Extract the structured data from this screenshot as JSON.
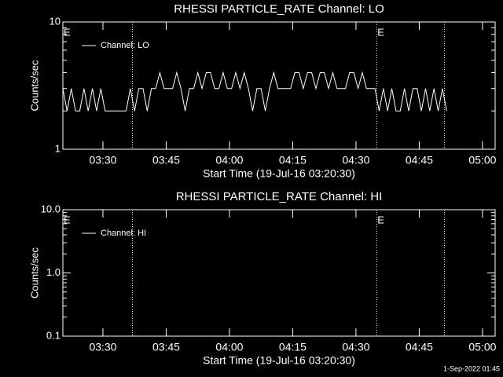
{
  "chart_data": [
    {
      "type": "line",
      "title": "RHESSI PARTICLE_RATE Channel: LO",
      "x_label": "Start Time (19-Jul-16 03:20:30)",
      "y_label": "Counts/sec",
      "log_y": true,
      "ylim": [
        1,
        10
      ],
      "yticks": [
        1,
        10
      ],
      "xlim": [
        200.5,
        303
      ],
      "xticks": [
        {
          "value": 210,
          "label": "03:30"
        },
        {
          "value": 225,
          "label": "03:45"
        },
        {
          "value": 240,
          "label": "04:00"
        },
        {
          "value": 255,
          "label": "04:15"
        },
        {
          "value": 270,
          "label": "04:30"
        },
        {
          "value": 285,
          "label": "04:45"
        },
        {
          "value": 300,
          "label": "05:00"
        }
      ],
      "x": [
        200.5,
        201.5,
        202.5,
        203.5,
        204.5,
        205.5,
        206.5,
        207.5,
        208.5,
        209.5,
        210.5,
        211.5,
        212.5,
        213.5,
        214.5,
        215.5,
        216.5,
        217.5,
        218.5,
        219.5,
        220.5,
        221.5,
        222.5,
        223.5,
        224.5,
        225.5,
        226.5,
        227.5,
        228.5,
        229.5,
        230.5,
        231.5,
        232.5,
        233.5,
        234.5,
        235.5,
        236.5,
        237.5,
        238.5,
        239.5,
        240.5,
        241.5,
        242.5,
        243.5,
        244.5,
        245.5,
        246.5,
        247.5,
        248.5,
        249.5,
        250.5,
        251.5,
        252.5,
        253.5,
        254.5,
        255.5,
        256.5,
        257.5,
        258.5,
        259.5,
        260.5,
        261.5,
        262.5,
        263.5,
        264.5,
        265.5,
        266.5,
        267.5,
        268.5,
        269.5,
        270.5,
        271.5,
        272.5,
        273.5,
        274.5,
        275.5,
        276.5,
        277.5,
        278.5,
        279.5,
        280.5,
        281.5,
        282.5,
        283.5,
        284.5,
        285.5,
        286.5,
        287.5,
        288.5,
        289.5,
        290.5,
        291.5
      ],
      "series": [
        {
          "name": "Channel: LO",
          "color": "#ffffff",
          "values": [
            3,
            2,
            3,
            2,
            2,
            3,
            2,
            3,
            2,
            3,
            2,
            2,
            2,
            2,
            2,
            2,
            3,
            2,
            3,
            3,
            2,
            3,
            3,
            4,
            3,
            3,
            3,
            4,
            3,
            2,
            3,
            3,
            4,
            3,
            4,
            4,
            3,
            3,
            4,
            3,
            3,
            4,
            3,
            4,
            3,
            2,
            3,
            3,
            2,
            3,
            4,
            3,
            3,
            3,
            3,
            4,
            4,
            3,
            4,
            4,
            3,
            4,
            4,
            3,
            4,
            3,
            3,
            3,
            4,
            4,
            3,
            4,
            3,
            3,
            3,
            2,
            3,
            2,
            3,
            2,
            2,
            3,
            2,
            3,
            3,
            2,
            3,
            2,
            3,
            2,
            3,
            2
          ]
        }
      ],
      "event_lines": [
        217.0,
        274.9,
        291.0
      ],
      "event_labels": [
        {
          "x": 200.5,
          "label": "E"
        },
        {
          "x": 274.9,
          "label": "E"
        }
      ]
    },
    {
      "type": "line",
      "title": "RHESSI PARTICLE_RATE Channel: HI",
      "x_label": "Start Time (19-Jul-16 03:20:30)",
      "y_label": "Counts/sec",
      "log_y": true,
      "ylim": [
        0.1,
        10
      ],
      "yticks": [
        0.1,
        {
          "value": 1,
          "label": "1.0"
        },
        {
          "value": 10,
          "label": "10.0"
        }
      ],
      "xlim": [
        200.5,
        303
      ],
      "xticks": [
        {
          "value": 210,
          "label": "03:30"
        },
        {
          "value": 225,
          "label": "03:45"
        },
        {
          "value": 240,
          "label": "04:00"
        },
        {
          "value": 255,
          "label": "04:15"
        },
        {
          "value": 270,
          "label": "04:30"
        },
        {
          "value": 285,
          "label": "04:45"
        },
        {
          "value": 300,
          "label": "05:00"
        }
      ],
      "x": [],
      "series": [
        {
          "name": "Channel: HI",
          "color": "#ffffff",
          "values": []
        }
      ],
      "event_lines": [
        217.0,
        274.9,
        291.0
      ],
      "event_labels": [
        {
          "x": 200.5,
          "label": "E"
        },
        {
          "x": 274.9,
          "label": "E"
        }
      ]
    }
  ],
  "footer": "1-Sep-2022 01:45"
}
